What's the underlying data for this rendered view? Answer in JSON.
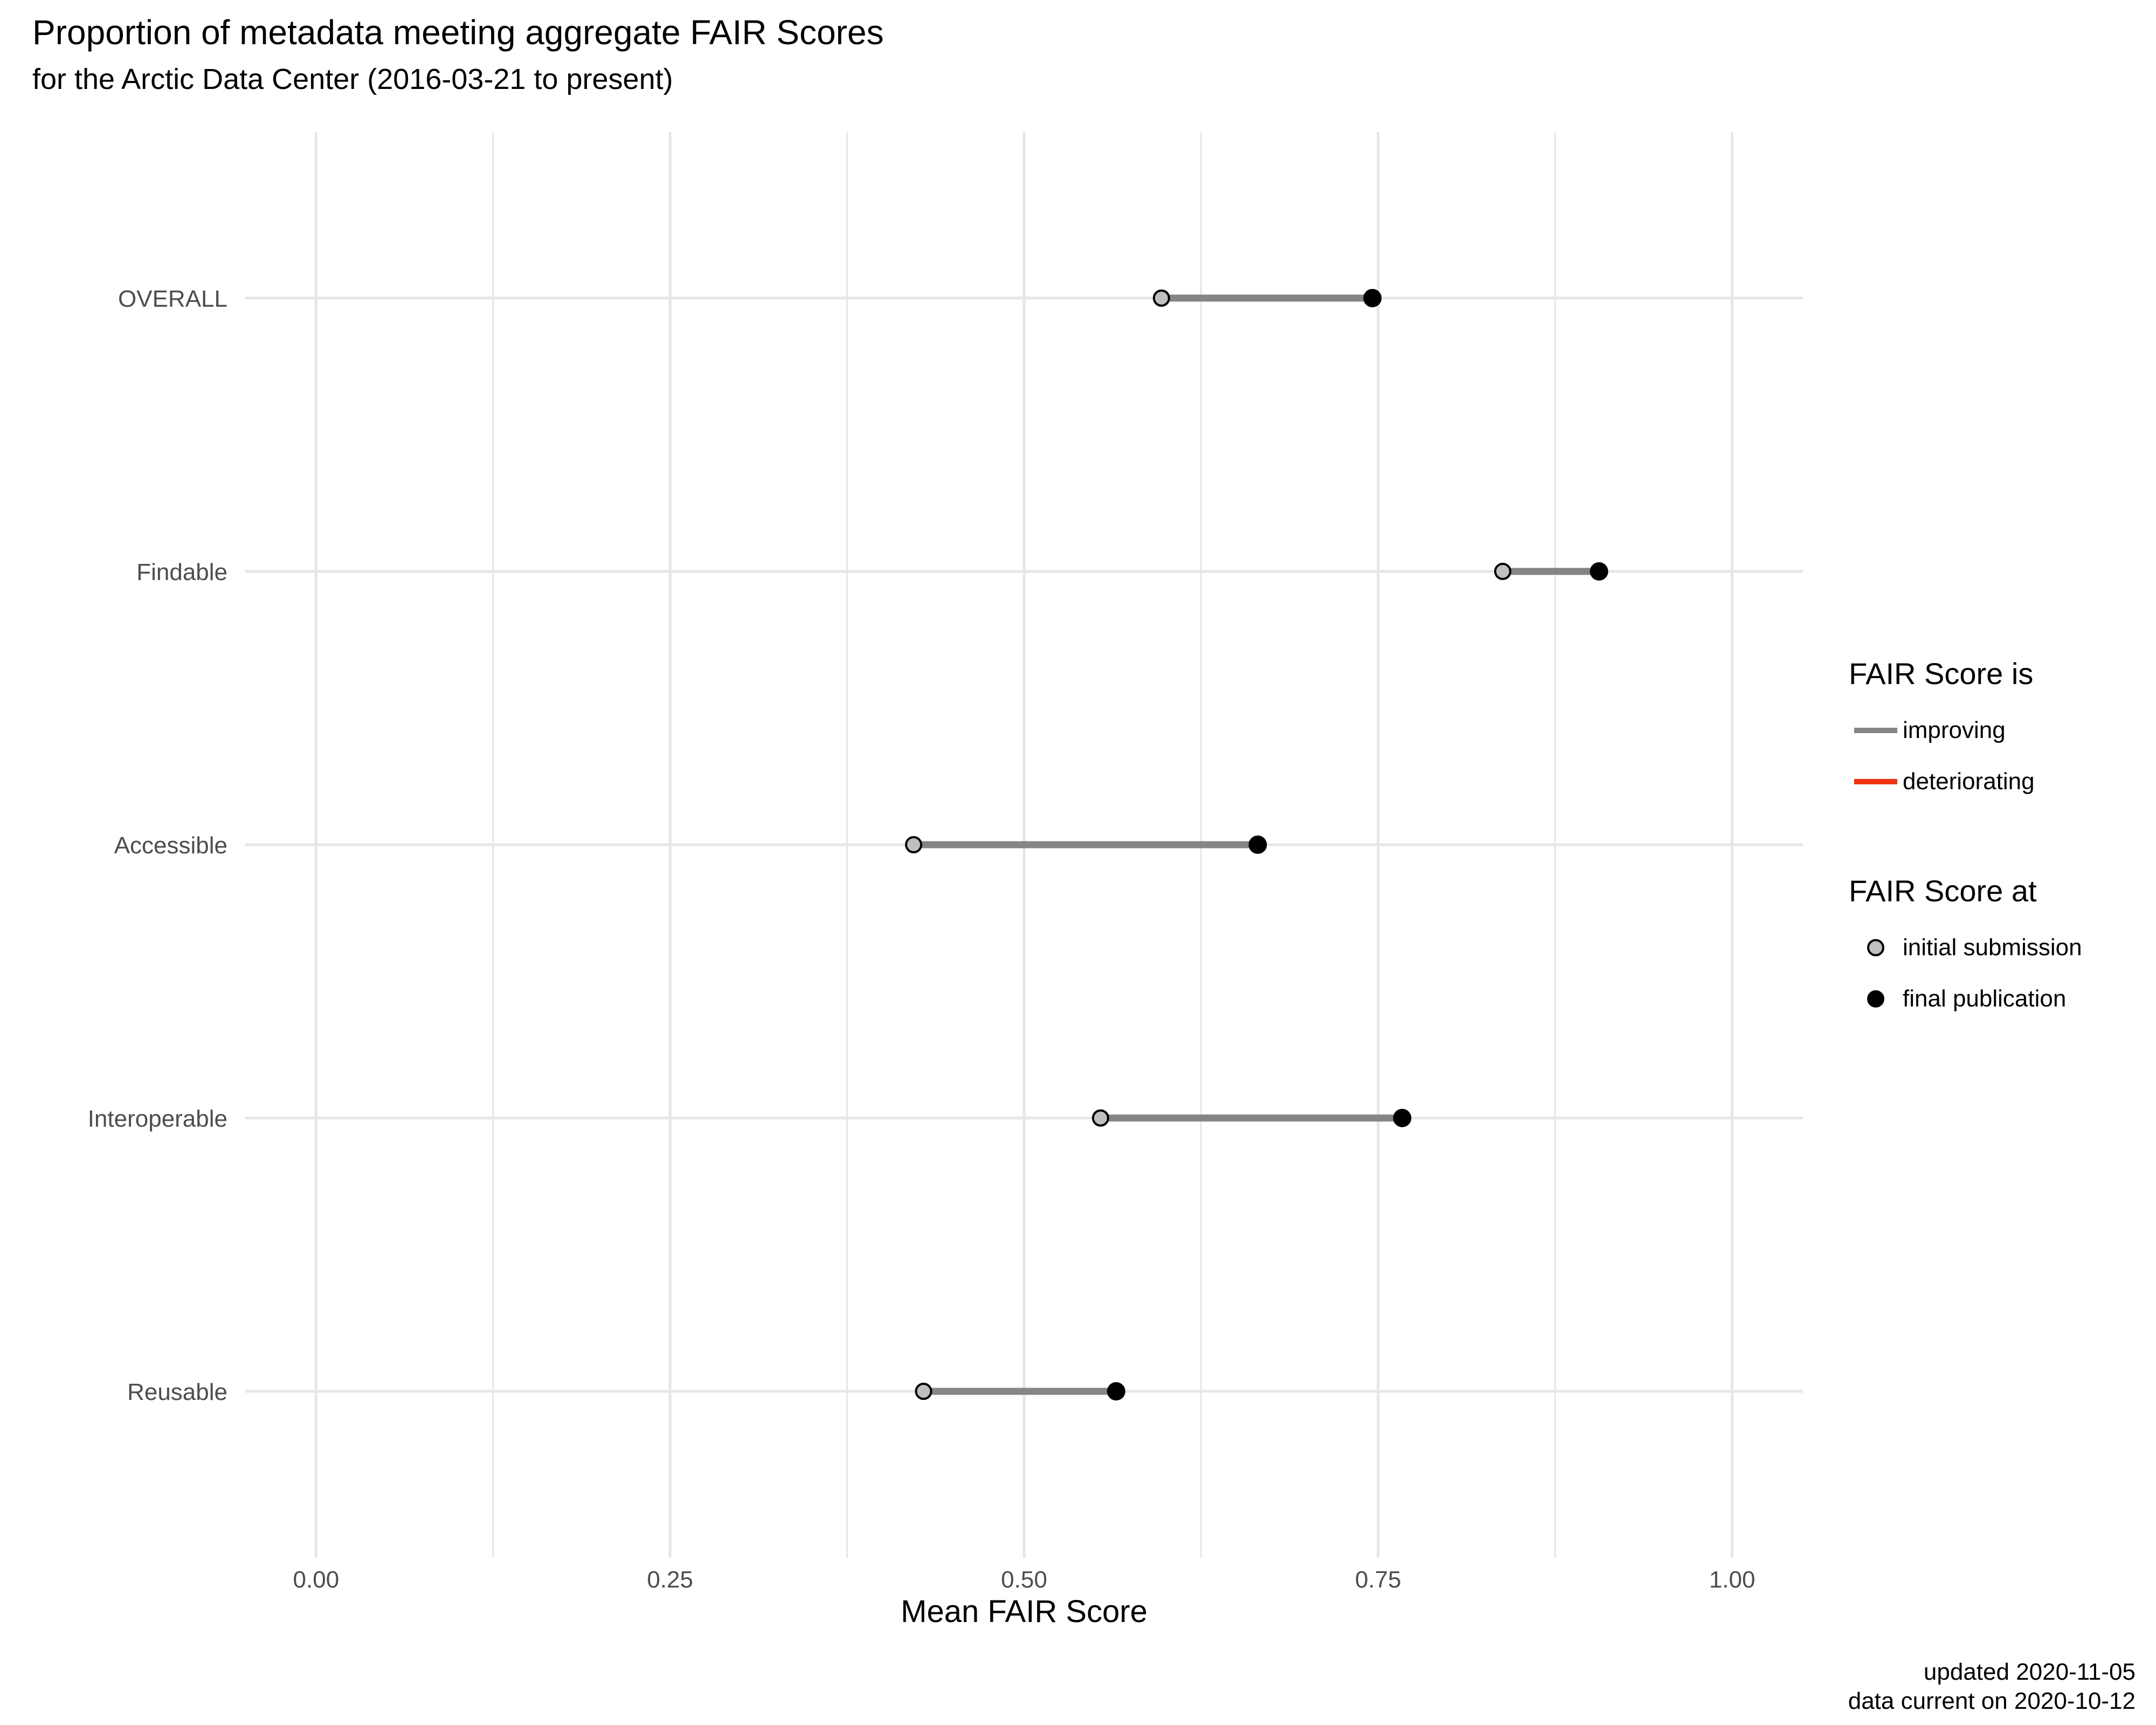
{
  "chart_data": {
    "type": "dumbbell",
    "title": "Proportion of metadata meeting aggregate FAIR Scores",
    "subtitle": "for the Arctic Data Center (2016-03-21 to present)",
    "xlabel": "Mean FAIR Score",
    "ylabel": "",
    "xlim": [
      -0.05,
      1.05
    ],
    "x_ticks": [
      "0.00",
      "0.25",
      "0.50",
      "0.75",
      "1.00"
    ],
    "grid": true,
    "categories": [
      "OVERALL",
      "Findable",
      "Accessible",
      "Interoperable",
      "Reusable"
    ],
    "series": [
      {
        "name": "initial submission",
        "values": [
          0.597,
          0.838,
          0.422,
          0.554,
          0.429
        ]
      },
      {
        "name": "final publication",
        "values": [
          0.746,
          0.906,
          0.665,
          0.767,
          0.565
        ]
      }
    ],
    "colors": {
      "improving": "#858585",
      "deteriorating": "#F2330E",
      "initial_fill": "#BFBFBF",
      "final_fill": "#000000",
      "grid": "#E6E6E6",
      "tick_text": "#4D4D4D"
    },
    "legend": {
      "placement": "right",
      "trend": {
        "title": "FAIR Score is",
        "items": [
          "improving",
          "deteriorating"
        ]
      },
      "stage": {
        "title": "FAIR Score at",
        "items": [
          "initial submission",
          "final publication"
        ]
      }
    },
    "caption": [
      "updated 2020-11-05",
      "data current on 2020-10-12"
    ]
  }
}
